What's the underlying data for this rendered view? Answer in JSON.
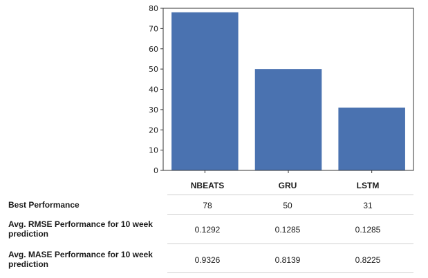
{
  "chart_data": {
    "type": "bar",
    "categories": [
      "NBEATS",
      "GRU",
      "LSTM"
    ],
    "values": [
      78,
      50,
      31
    ],
    "title": "",
    "xlabel": "",
    "ylabel": "",
    "ylim": [
      0,
      80
    ],
    "yticks": [
      0,
      10,
      20,
      30,
      40,
      50,
      60,
      70,
      80
    ],
    "color": "#4a72b0",
    "grid": false
  },
  "table": {
    "rows": [
      {
        "label": "Best Performance",
        "values": [
          "78",
          "50",
          "31"
        ]
      },
      {
        "label": "Avg. RMSE Performance for 10 week prediction",
        "values": [
          "0.1292",
          "0.1285",
          "0.1285"
        ]
      },
      {
        "label": "Avg. MASE Performance for 10 week prediction",
        "values": [
          "0.9326",
          "0.8139",
          "0.8225"
        ]
      }
    ]
  }
}
